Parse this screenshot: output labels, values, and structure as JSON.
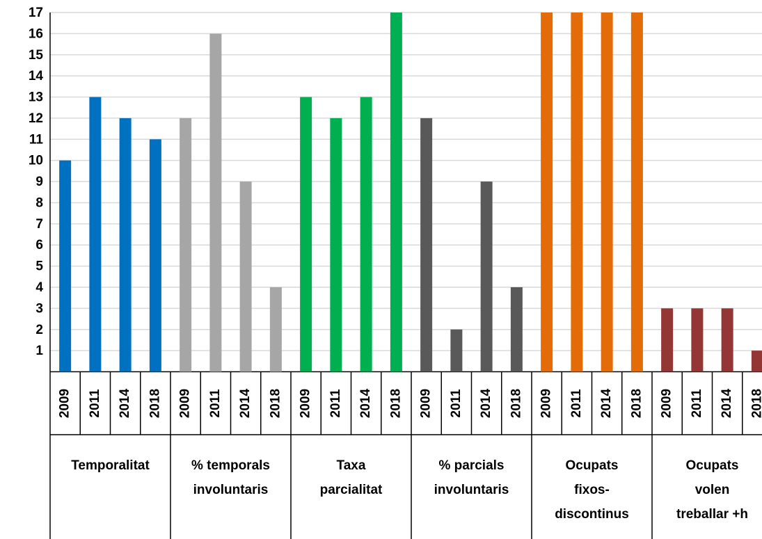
{
  "chart_data": {
    "type": "bar",
    "ylim": [
      0,
      17
    ],
    "yticks": [
      1,
      2,
      3,
      4,
      5,
      6,
      7,
      8,
      9,
      10,
      11,
      12,
      13,
      14,
      15,
      16,
      17
    ],
    "grid": true,
    "groups": [
      {
        "label": [
          "Temporalitat"
        ],
        "color": "#0070c0",
        "categories": [
          "2009",
          "2011",
          "2014",
          "2018"
        ],
        "values": [
          10,
          13,
          12,
          11
        ]
      },
      {
        "label": [
          "% temporals",
          "involuntaris"
        ],
        "color": "#a6a6a6",
        "categories": [
          "2009",
          "2011",
          "2014",
          "2018"
        ],
        "values": [
          12,
          16,
          9,
          4
        ]
      },
      {
        "label": [
          "Taxa",
          "parcialitat"
        ],
        "color": "#00b050",
        "categories": [
          "2009",
          "2011",
          "2014",
          "2018"
        ],
        "values": [
          13,
          12,
          13,
          17
        ]
      },
      {
        "label": [
          "% parcials",
          "involuntaris"
        ],
        "color": "#595959",
        "categories": [
          "2009",
          "2011",
          "2014",
          "2018"
        ],
        "values": [
          12,
          2,
          9,
          4
        ]
      },
      {
        "label": [
          "Ocupats",
          "fixos-",
          "discontinus"
        ],
        "color": "#e36c09",
        "categories": [
          "2009",
          "2011",
          "2014",
          "2018"
        ],
        "values": [
          17,
          17,
          17,
          17
        ]
      },
      {
        "label": [
          "Ocupats",
          "volen",
          "treballar +h"
        ],
        "color": "#943634",
        "categories": [
          "2009",
          "2011",
          "2014",
          "2018"
        ],
        "values": [
          3,
          3,
          3,
          1
        ]
      }
    ]
  }
}
